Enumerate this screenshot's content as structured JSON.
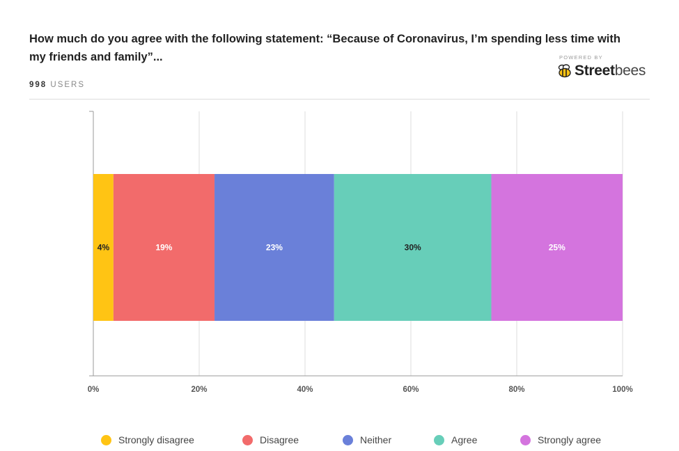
{
  "header": {
    "title": "How much do you agree with the following statement: “Because of Coronavirus, I’m spending less time with my friends and family”...",
    "user_count": "998",
    "users_label": "USERS"
  },
  "branding": {
    "powered_by": "POWERED BY",
    "name_bold": "Street",
    "name_light": "bees",
    "icon": "bee-icon"
  },
  "chart_data": {
    "type": "bar",
    "orientation": "horizontal",
    "stacked": true,
    "xlim": [
      0,
      100
    ],
    "x_ticks": [
      "0%",
      "20%",
      "40%",
      "60%",
      "80%",
      "100%"
    ],
    "grid": true,
    "legend_position": "bottom",
    "series": [
      {
        "name": "Strongly disagree",
        "value": 3.8,
        "label": "4%",
        "color": "#FFC414",
        "label_color": "#222222"
      },
      {
        "name": "Disagree",
        "value": 19.1,
        "label": "19%",
        "color": "#F26B6B",
        "label_color": "#ffffff"
      },
      {
        "name": "Neither",
        "value": 22.6,
        "label": "23%",
        "color": "#6A80D9",
        "label_color": "#ffffff"
      },
      {
        "name": "Agree",
        "value": 29.7,
        "label": "30%",
        "color": "#67CEB9",
        "label_color": "#222222"
      },
      {
        "name": "Strongly agree",
        "value": 24.8,
        "label": "25%",
        "color": "#D474DE",
        "label_color": "#ffffff"
      }
    ]
  }
}
